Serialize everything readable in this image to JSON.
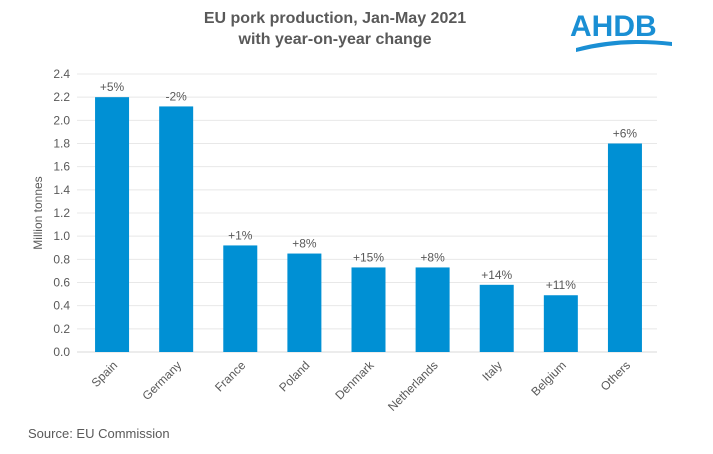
{
  "chart_data": {
    "type": "bar",
    "title": "EU pork production, Jan-May 2021",
    "subtitle": "with year-on-year change",
    "ylabel": "Million tonnes",
    "xlabel": "",
    "ylim": [
      0,
      2.4
    ],
    "yticks": [
      "0.0",
      "0.2",
      "0.4",
      "0.6",
      "0.8",
      "1.0",
      "1.2",
      "1.4",
      "1.6",
      "1.8",
      "2.0",
      "2.2",
      "2.4"
    ],
    "grid": true,
    "categories": [
      "Spain",
      "Germany",
      "France",
      "Poland",
      "Denmark",
      "Netherlands",
      "Italy",
      "Belgium",
      "Others"
    ],
    "values": [
      2.2,
      2.12,
      0.92,
      0.85,
      0.73,
      0.73,
      0.58,
      0.49,
      1.8
    ],
    "data_labels": [
      "+5%",
      "-2%",
      "+1%",
      "+8%",
      "+15%",
      "+8%",
      "+14%",
      "+11%",
      "+6%"
    ],
    "bar_color": "#0090d4"
  },
  "logo": {
    "text": "AHDB",
    "color": "#1a8fd4"
  },
  "source": "Source: EU Commission"
}
